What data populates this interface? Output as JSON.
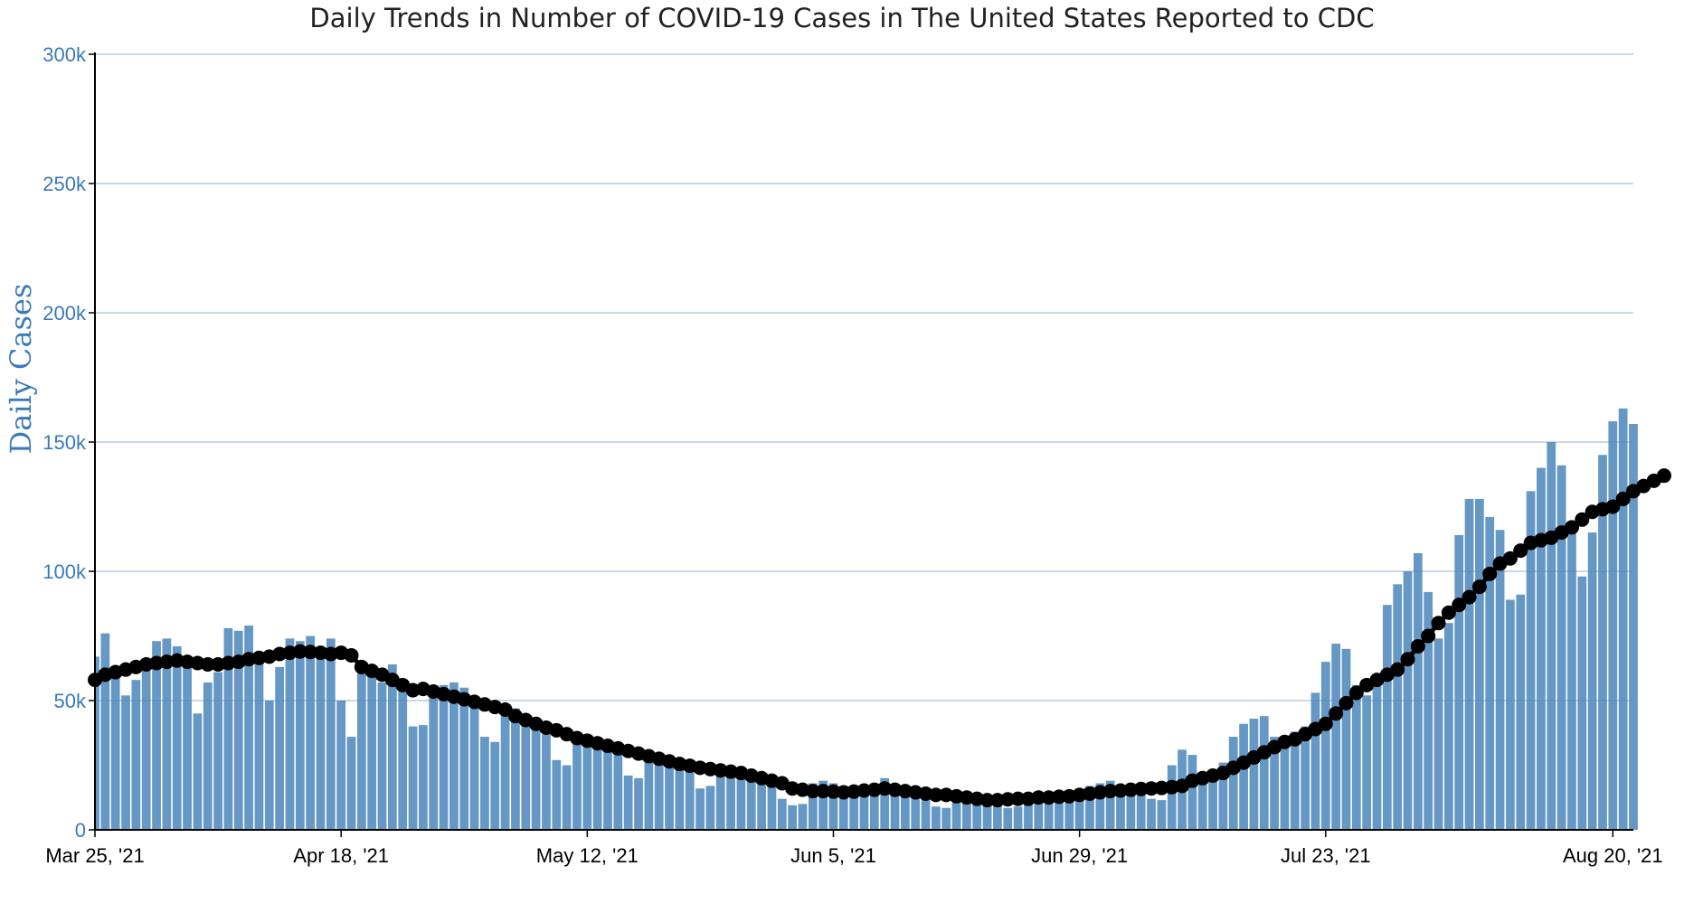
{
  "chart_data": {
    "type": "bar",
    "title": "Daily Trends in Number of COVID-19 Cases in The United States Reported to CDC",
    "ylabel": "Daily Cases",
    "xlabel": "",
    "ylim": [
      0,
      300000
    ],
    "yticks": [
      0,
      50000,
      100000,
      150000,
      200000,
      250000,
      300000
    ],
    "ytick_labels": [
      "0",
      "50k",
      "100k",
      "150k",
      "200k",
      "250k",
      "300k"
    ],
    "xtick_labels": [
      "Mar 25, '21",
      "Apr 18, '21",
      "May 12, '21",
      "Jun 5, '21",
      "Jun 29, '21",
      "Jul 23, '21",
      "Aug 20, '21"
    ],
    "xtick_day_index": [
      0,
      24,
      48,
      72,
      96,
      120,
      148
    ],
    "grid": true,
    "colors": {
      "bars": "#4a86bb",
      "line": "#000000",
      "grid": "#b7cce2",
      "axis_label": "#3a7ab8"
    },
    "series": [
      {
        "kind": "bar",
        "values": [
          67000,
          76000,
          61000,
          52000,
          58000,
          63000,
          73000,
          74000,
          71000,
          65000,
          45000,
          57000,
          61000,
          78000,
          77000,
          79000,
          67000,
          50000,
          63000,
          74000,
          73000,
          75000,
          67000,
          74000,
          50000,
          36000,
          62000,
          61000,
          57000,
          64000,
          54000,
          40000,
          40500,
          52000,
          56000,
          57000,
          55000,
          51000,
          36000,
          34000,
          47000,
          47000,
          41000,
          40000,
          37000,
          27000,
          25000,
          34000,
          35000,
          33000,
          32000,
          30000,
          21000,
          20000,
          27000,
          28000,
          27000,
          26000,
          25000,
          16000,
          17000,
          23000,
          22000,
          21000,
          20000,
          19000,
          18000,
          12000,
          9500,
          10000,
          18000,
          19000,
          18000,
          17000,
          15000,
          14000,
          18000,
          20000,
          17000,
          16000,
          15000,
          14000,
          9000,
          8500,
          14000,
          13000,
          12000,
          11000,
          10000,
          8500,
          9000,
          13000,
          14000,
          13000,
          12000,
          11500,
          12000,
          17000,
          18000,
          19000,
          17000,
          18000,
          16000,
          12000,
          11500,
          25000,
          31000,
          29000,
          22000,
          20000,
          26000,
          36000,
          41000,
          43000,
          44000,
          36000,
          33000,
          38000,
          40000,
          53000,
          65000,
          72000,
          70000,
          56000,
          52000,
          57000,
          87000,
          95000,
          100000,
          107000,
          92000,
          74000,
          80000,
          114000,
          128000,
          128000,
          121000,
          116000,
          89000,
          91000,
          131000,
          140000,
          150000,
          141000,
          118000,
          98000,
          115000,
          145000,
          158000,
          163000,
          157000
        ]
      },
      {
        "kind": "line",
        "values": [
          58000,
          60000,
          61000,
          62000,
          63000,
          64000,
          64500,
          65000,
          65500,
          65000,
          64500,
          64000,
          64000,
          64500,
          65000,
          66000,
          66500,
          67000,
          68000,
          68500,
          69000,
          68800,
          68500,
          68000,
          68500,
          67500,
          63000,
          61500,
          60000,
          58000,
          56000,
          54000,
          54500,
          53500,
          52500,
          51500,
          50500,
          49500,
          48500,
          47500,
          46500,
          44000,
          42500,
          41000,
          39500,
          38500,
          37000,
          35500,
          34500,
          33500,
          32500,
          31500,
          30500,
          29500,
          28500,
          27500,
          26500,
          25500,
          24800,
          24000,
          23500,
          23000,
          22500,
          22000,
          21000,
          20000,
          19000,
          18000,
          16000,
          15500,
          15000,
          15000,
          14800,
          14500,
          14800,
          15200,
          15500,
          16000,
          15500,
          15000,
          14500,
          14000,
          13500,
          13500,
          13000,
          12500,
          12000,
          11500,
          11500,
          11800,
          12000,
          12000,
          12500,
          12500,
          12800,
          13000,
          13500,
          14000,
          14500,
          15000,
          15200,
          15500,
          15800,
          16000,
          16200,
          16500,
          17000,
          19000,
          20000,
          21000,
          22000,
          24000,
          26000,
          28000,
          30000,
          32000,
          34000,
          35000,
          37000,
          39000,
          41000,
          45000,
          49000,
          53000,
          56000,
          58000,
          60000,
          62000,
          66000,
          71000,
          75000,
          80000,
          84000,
          87000,
          90000,
          94000,
          99000,
          103000,
          105000,
          108000,
          111000,
          112000,
          113000,
          115000,
          117000,
          120000,
          123000,
          124000,
          125000,
          128000,
          131000,
          133000,
          135000,
          137000
        ]
      }
    ]
  }
}
